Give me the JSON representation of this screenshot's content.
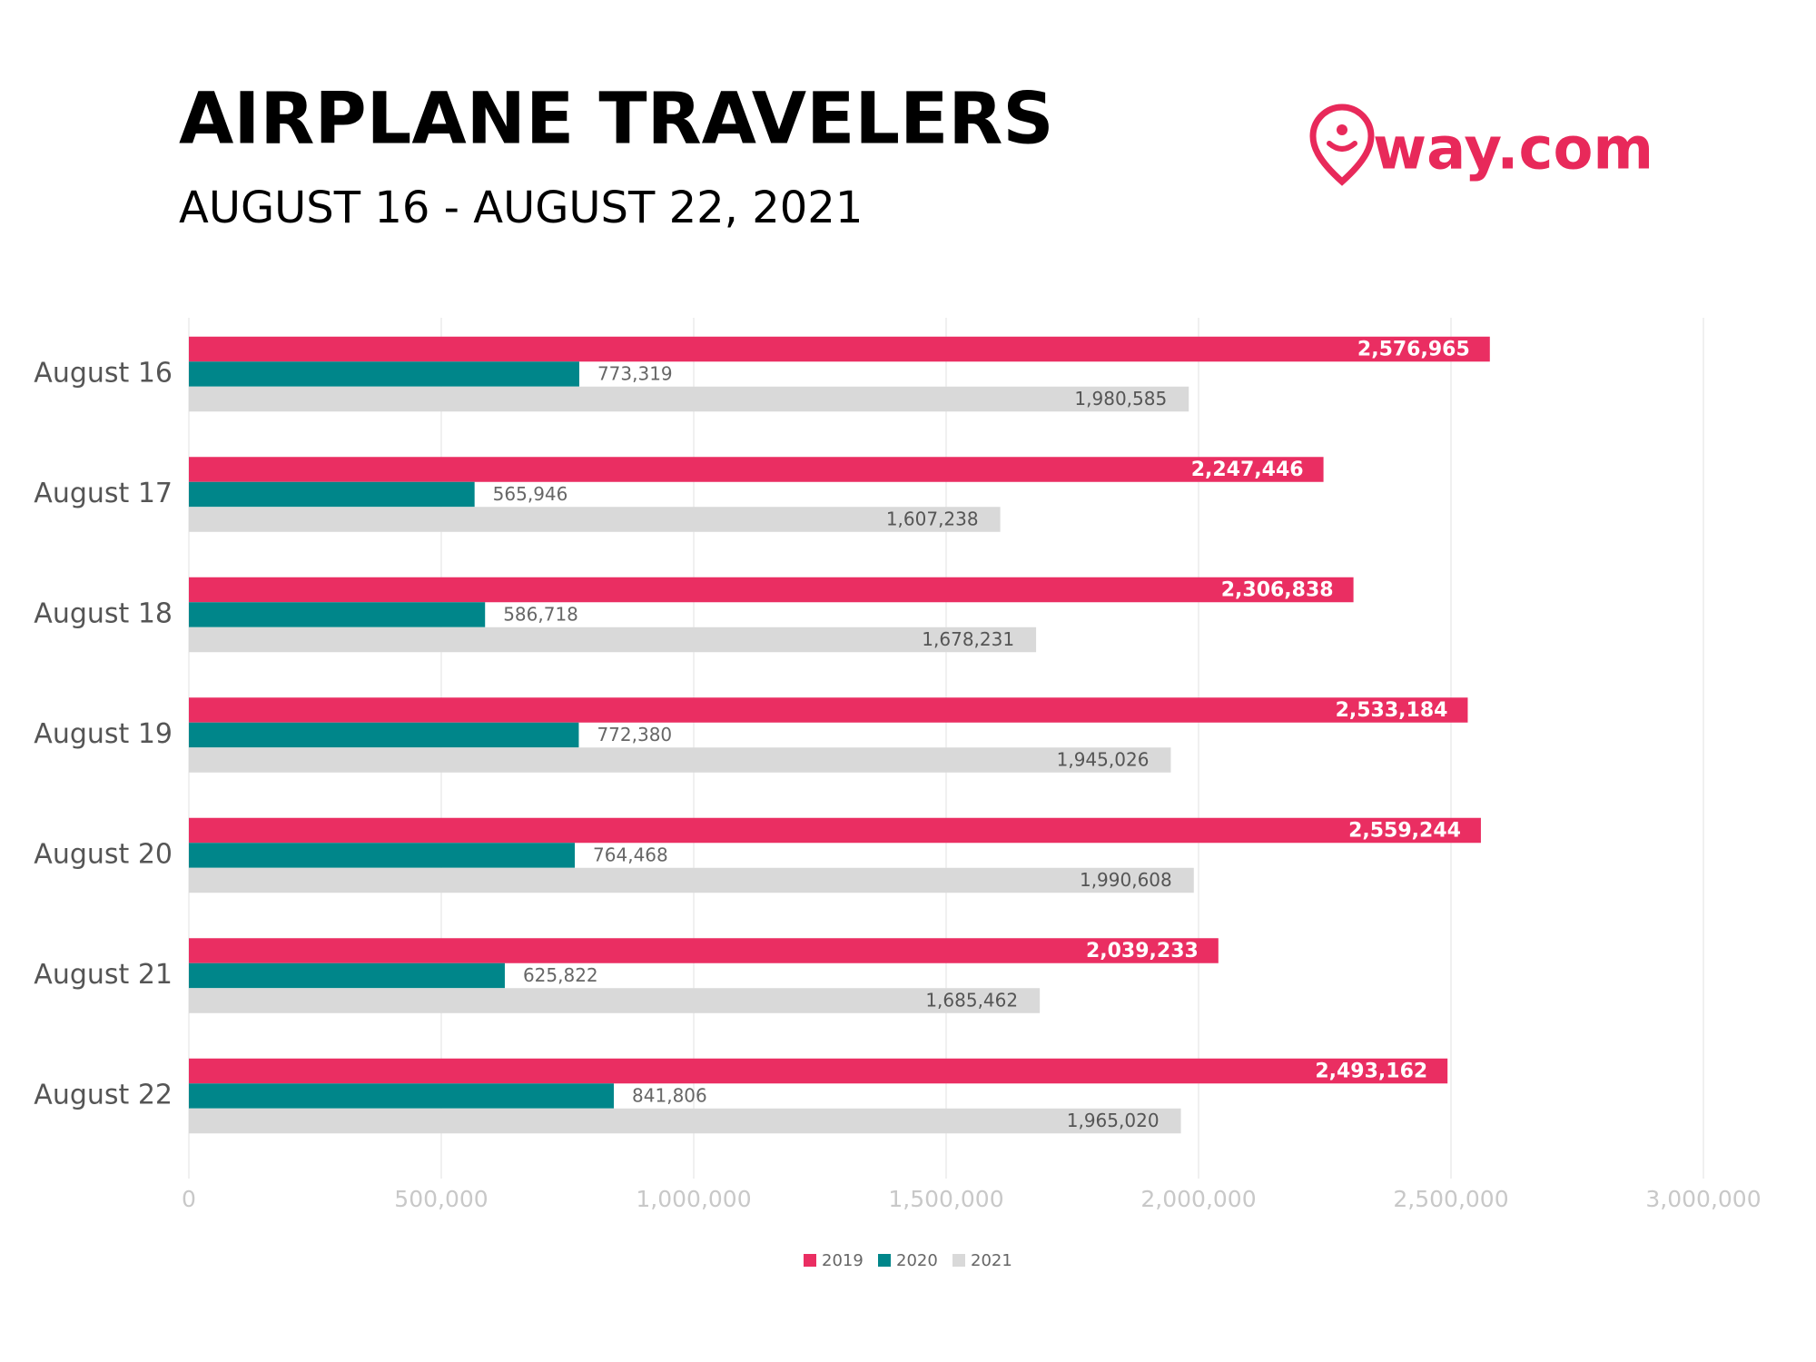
{
  "brand": {
    "logo": "way.com"
  },
  "chart_data": {
    "type": "bar",
    "orientation": "horizontal",
    "title": "AIRPLANE TRAVELERS",
    "subtitle": "AUGUST 16 - AUGUST 22, 2021",
    "categories": [
      "August 16",
      "August 17",
      "August 18",
      "August 19",
      "August 20",
      "August 21",
      "August 22"
    ],
    "series": [
      {
        "name": "2019",
        "color": "#ea2e62",
        "values": [
          2576965,
          2247446,
          2306838,
          2533184,
          2559244,
          2039233,
          2493162
        ],
        "value_labels": [
          "2,576,965",
          "2,247,446",
          "2,306,838",
          "2,533,184",
          "2,559,244",
          "2,039,233",
          "2,493,162"
        ]
      },
      {
        "name": "2020",
        "color": "#00868a",
        "values": [
          773319,
          565946,
          586718,
          772380,
          764468,
          625822,
          841806
        ],
        "value_labels": [
          "773,319",
          "565,946",
          "586,718",
          "772,380",
          "764,468",
          "625,822",
          "841,806"
        ]
      },
      {
        "name": "2021",
        "color": "#d9d9d9",
        "values": [
          1980585,
          1607238,
          1678231,
          1945026,
          1990608,
          1685462,
          1965020
        ],
        "value_labels": [
          "1,980,585",
          "1,607,238",
          "1,678,231",
          "1,945,026",
          "1,990,608",
          "1,685,462",
          "1,965,020"
        ]
      }
    ],
    "xlim": [
      0,
      3000000
    ],
    "xticks": [
      0,
      {
        "value": 500000,
        "label": "500,000"
      },
      {
        "value": 1000000,
        "label": "1,000,000"
      },
      {
        "value": 1500000,
        "label": "1,500,000"
      },
      {
        "value": 2000000,
        "label": "2,000,000"
      },
      {
        "value": 2500000,
        "label": "2,500,000"
      },
      {
        "value": 3000000,
        "label": "3,000,000"
      }
    ],
    "grid": true,
    "legend": "bottom"
  }
}
